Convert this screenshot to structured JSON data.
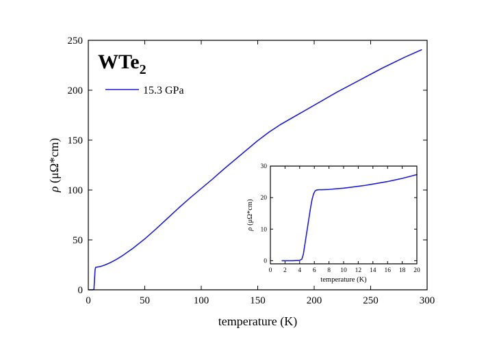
{
  "chart_data": [
    {
      "type": "line",
      "title": "",
      "annotation": {
        "main": "WTe",
        "subscript": "2"
      },
      "xlabel": "temperature (K)",
      "ylabel": {
        "symbol": "ρ",
        "units": " (μΩ*cm)"
      },
      "xlim": [
        0,
        300
      ],
      "ylim": [
        0,
        250
      ],
      "xticks": [
        "0",
        "50",
        "100",
        "150",
        "200",
        "250",
        "300"
      ],
      "yticks": [
        "0",
        "50",
        "100",
        "150",
        "200",
        "250"
      ],
      "legend_position": "top-left",
      "grid": false,
      "series": [
        {
          "name": "15.3 GPa",
          "color": "#1c1cd8",
          "x": [
            0.5,
            2,
            4,
            5,
            5.6,
            6,
            6.5,
            8,
            10,
            12,
            15,
            20,
            25,
            30,
            40,
            50,
            60,
            70,
            80,
            90,
            100,
            110,
            120,
            130,
            140,
            150,
            160,
            170,
            180,
            190,
            200,
            210,
            220,
            230,
            240,
            250,
            260,
            270,
            280,
            290,
            295
          ],
          "y": [
            0,
            0,
            0,
            0.5,
            12,
            20,
            22.5,
            22.8,
            23.2,
            23.8,
            25,
            27.5,
            30.5,
            34,
            42,
            51,
            61,
            71.5,
            82,
            92,
            101.5,
            111,
            121,
            130.5,
            140,
            149.5,
            158,
            165.5,
            172,
            178.5,
            185,
            191.5,
            198,
            204,
            210,
            216,
            222,
            227.5,
            233,
            238,
            240.5
          ]
        }
      ]
    },
    {
      "type": "line",
      "title": "",
      "xlabel": "temperature (K)",
      "ylabel": {
        "symbol": "ρ",
        "units": " (μΩ*cm)"
      },
      "xlim": [
        0,
        20
      ],
      "ylim": [
        -1,
        30
      ],
      "xticks": [
        "0",
        "2",
        "4",
        "6",
        "8",
        "10",
        "12",
        "14",
        "16",
        "18",
        "20"
      ],
      "yticks": [
        "0",
        "10",
        "20",
        "30"
      ],
      "grid": false,
      "series": [
        {
          "color": "#1c1cd8",
          "x": [
            1.6,
            2,
            3,
            4,
            4.3,
            4.5,
            4.7,
            4.9,
            5.1,
            5.3,
            5.5,
            5.7,
            5.9,
            6.1,
            6.3,
            6.6,
            7,
            8,
            9,
            10,
            11,
            12,
            13,
            14,
            15,
            16,
            17,
            18,
            19,
            20
          ],
          "y": [
            0,
            0,
            0,
            0.1,
            0.5,
            2,
            5,
            8,
            11,
            14,
            17,
            19.5,
            21.2,
            22.1,
            22.4,
            22.5,
            22.5,
            22.6,
            22.8,
            23,
            23.3,
            23.6,
            23.9,
            24.3,
            24.7,
            25.1,
            25.6,
            26.1,
            26.7,
            27.3
          ]
        }
      ]
    }
  ]
}
